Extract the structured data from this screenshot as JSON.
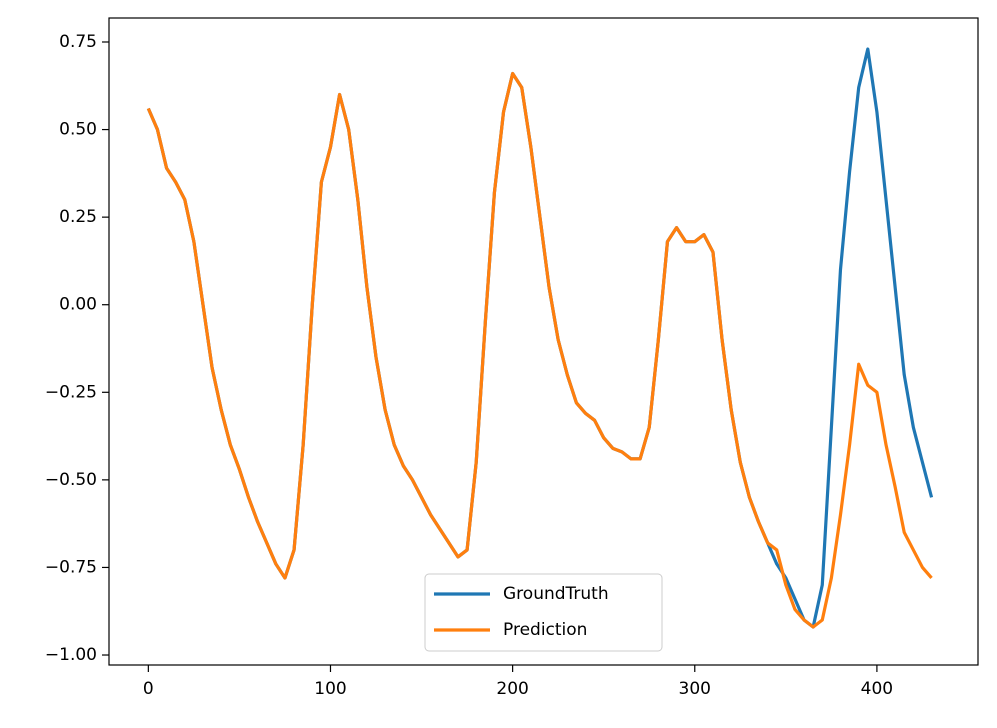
{
  "chart_data": {
    "type": "line",
    "x": [
      0,
      5,
      10,
      15,
      20,
      25,
      30,
      35,
      40,
      45,
      50,
      55,
      60,
      65,
      70,
      75,
      80,
      85,
      90,
      95,
      100,
      105,
      110,
      115,
      120,
      125,
      130,
      135,
      140,
      145,
      150,
      155,
      160,
      165,
      170,
      175,
      180,
      185,
      190,
      195,
      200,
      205,
      210,
      215,
      220,
      225,
      230,
      235,
      240,
      245,
      250,
      255,
      260,
      265,
      270,
      275,
      280,
      285,
      290,
      295,
      300,
      305,
      310,
      315,
      320,
      325,
      330,
      335,
      340,
      345,
      350,
      355,
      360,
      365,
      370,
      375,
      380,
      385,
      390,
      395,
      400,
      405,
      410,
      415,
      420,
      425,
      430
    ],
    "series": [
      {
        "name": "GroundTruth",
        "color": "#1f77b4",
        "values": [
          0.56,
          0.5,
          0.39,
          0.35,
          0.3,
          0.18,
          0.0,
          -0.18,
          -0.3,
          -0.4,
          -0.47,
          -0.55,
          -0.62,
          -0.68,
          -0.74,
          -0.78,
          -0.7,
          -0.4,
          0.0,
          0.35,
          0.45,
          0.6,
          0.5,
          0.3,
          0.05,
          -0.15,
          -0.3,
          -0.4,
          -0.46,
          -0.5,
          -0.55,
          -0.6,
          -0.64,
          -0.68,
          -0.72,
          -0.7,
          -0.45,
          -0.05,
          0.32,
          0.55,
          0.66,
          0.62,
          0.45,
          0.25,
          0.05,
          -0.1,
          -0.2,
          -0.28,
          -0.31,
          -0.33,
          -0.38,
          -0.41,
          -0.42,
          -0.44,
          -0.44,
          -0.35,
          -0.1,
          0.18,
          0.22,
          0.18,
          0.18,
          0.2,
          0.15,
          -0.1,
          -0.3,
          -0.45,
          -0.55,
          -0.62,
          -0.68,
          -0.74,
          -0.78,
          -0.84,
          -0.9,
          -0.92,
          -0.8,
          -0.35,
          0.1,
          0.38,
          0.62,
          0.73,
          0.55,
          0.3,
          0.05,
          -0.2,
          -0.35,
          -0.45,
          -0.55
        ]
      },
      {
        "name": "Prediction",
        "color": "#ff7f0e",
        "values": [
          0.56,
          0.5,
          0.39,
          0.35,
          0.3,
          0.18,
          0.0,
          -0.18,
          -0.3,
          -0.4,
          -0.47,
          -0.55,
          -0.62,
          -0.68,
          -0.74,
          -0.78,
          -0.7,
          -0.4,
          0.0,
          0.35,
          0.45,
          0.6,
          0.5,
          0.3,
          0.05,
          -0.15,
          -0.3,
          -0.4,
          -0.46,
          -0.5,
          -0.55,
          -0.6,
          -0.64,
          -0.68,
          -0.72,
          -0.7,
          -0.45,
          -0.05,
          0.32,
          0.55,
          0.66,
          0.62,
          0.45,
          0.25,
          0.05,
          -0.1,
          -0.2,
          -0.28,
          -0.31,
          -0.33,
          -0.38,
          -0.41,
          -0.42,
          -0.44,
          -0.44,
          -0.35,
          -0.1,
          0.18,
          0.22,
          0.18,
          0.18,
          0.2,
          0.15,
          -0.1,
          -0.3,
          -0.45,
          -0.55,
          -0.62,
          -0.68,
          -0.7,
          -0.8,
          -0.87,
          -0.9,
          -0.92,
          -0.9,
          -0.78,
          -0.6,
          -0.4,
          -0.17,
          -0.23,
          -0.25,
          -0.4,
          -0.52,
          -0.65,
          -0.7,
          -0.75,
          -0.78
        ]
      }
    ],
    "xlim": [
      -21.6,
      455.5
    ],
    "xticks": [
      0,
      100,
      200,
      300,
      400
    ],
    "ylim": [
      -1.0285,
      0.8185
    ],
    "yticks": [
      {
        "value": -1.0,
        "label": "−1.00"
      },
      {
        "value": -0.75,
        "label": "−0.75"
      },
      {
        "value": -0.5,
        "label": "−0.50"
      },
      {
        "value": -0.25,
        "label": "−0.25"
      },
      {
        "value": 0.0,
        "label": "0.00"
      },
      {
        "value": 0.25,
        "label": "0.25"
      },
      {
        "value": 0.5,
        "label": "0.50"
      },
      {
        "value": 0.75,
        "label": "0.75"
      }
    ],
    "grid": false,
    "legend": "lower center"
  }
}
